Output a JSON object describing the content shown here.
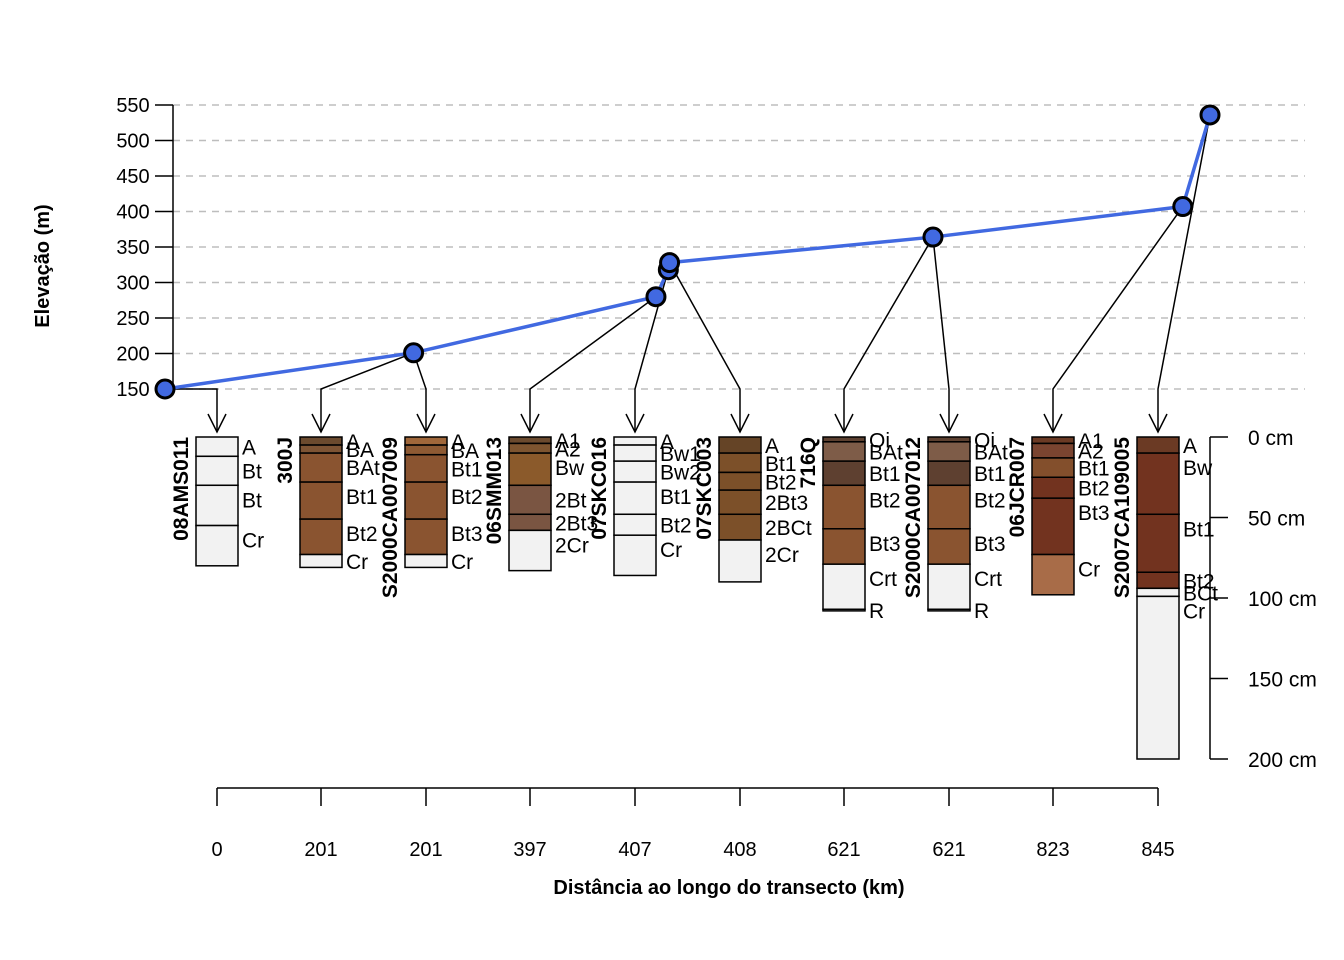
{
  "chart_data": {
    "type": "line",
    "ylabel": "Elevação (m)",
    "xlabel": "Distância ao longo do transecto (km)",
    "ylim": [
      150,
      550
    ],
    "y_ticks": [
      150,
      200,
      250,
      300,
      350,
      400,
      450,
      500,
      550
    ],
    "grid": "horizontal dashed",
    "line_color": "#4169E1",
    "point_fill": "#4169E1",
    "elevation_points": [
      {
        "x": 0,
        "y": 150
      },
      {
        "x": 201,
        "y": 201
      },
      {
        "x": 397,
        "y": 280
      },
      {
        "x": 407,
        "y": 318
      },
      {
        "x": 408,
        "y": 328
      },
      {
        "x": 621,
        "y": 364
      },
      {
        "x": 823,
        "y": 407
      },
      {
        "x": 845,
        "y": 536
      }
    ],
    "distance_labels": [
      "0",
      "201",
      "201",
      "397",
      "407",
      "408",
      "621",
      "621",
      "823",
      "845"
    ],
    "depth_axis": {
      "ticks": [
        0,
        50,
        100,
        150,
        200
      ],
      "labels": [
        "0 cm",
        "50 cm",
        "100 cm",
        "150 cm",
        "200 cm"
      ]
    },
    "profiles": [
      {
        "id": "08AMS011",
        "point": 0,
        "horizons": [
          {
            "name": "A",
            "top": 0,
            "bottom": 12,
            "color": "#F2F2F2"
          },
          {
            "name": "Bt",
            "top": 12,
            "bottom": 30,
            "color": "#F2F2F2"
          },
          {
            "name": "Bt",
            "top": 30,
            "bottom": 55,
            "color": "#F2F2F2"
          },
          {
            "name": "Cr",
            "top": 55,
            "bottom": 80,
            "color": "#F2F2F2"
          }
        ]
      },
      {
        "id": "300J",
        "point": 1,
        "horizons": [
          {
            "name": "A",
            "top": 0,
            "bottom": 5,
            "color": "#6B4A2E"
          },
          {
            "name": "BA",
            "top": 5,
            "bottom": 10,
            "color": "#7E5434"
          },
          {
            "name": "BAt",
            "top": 10,
            "bottom": 28,
            "color": "#8A5430"
          },
          {
            "name": "Bt1",
            "top": 28,
            "bottom": 51,
            "color": "#8A5430"
          },
          {
            "name": "Bt2",
            "top": 51,
            "bottom": 73,
            "color": "#8A5430"
          },
          {
            "name": "Cr",
            "top": 73,
            "bottom": 81,
            "color": "#F2F2F2"
          }
        ]
      },
      {
        "id": "S2000CA007009",
        "point": 1,
        "horizons": [
          {
            "name": "A",
            "top": 0,
            "bottom": 5,
            "color": "#A0673A"
          },
          {
            "name": "BA",
            "top": 5,
            "bottom": 11,
            "color": "#8E5A33"
          },
          {
            "name": "Bt1",
            "top": 11,
            "bottom": 28,
            "color": "#8A5430"
          },
          {
            "name": "Bt2",
            "top": 28,
            "bottom": 51,
            "color": "#8A5430"
          },
          {
            "name": "Bt3",
            "top": 51,
            "bottom": 73,
            "color": "#8A5430"
          },
          {
            "name": "Cr",
            "top": 73,
            "bottom": 81,
            "color": "#F2F2F2"
          }
        ]
      },
      {
        "id": "06SMM013",
        "point": 2,
        "horizons": [
          {
            "name": "A1",
            "top": 0,
            "bottom": 4,
            "color": "#6B4A2E"
          },
          {
            "name": "A2",
            "top": 4,
            "bottom": 10,
            "color": "#7E5530"
          },
          {
            "name": "Bw",
            "top": 10,
            "bottom": 30,
            "color": "#8B5A2B"
          },
          {
            "name": "2Bt",
            "top": 30,
            "bottom": 48,
            "color": "#7A5542"
          },
          {
            "name": "2Bt3",
            "top": 48,
            "bottom": 58,
            "color": "#7A5542"
          },
          {
            "name": "2Cr",
            "top": 58,
            "bottom": 83,
            "color": "#F2F2F2"
          }
        ]
      },
      {
        "id": "07SKC016",
        "point": 3,
        "horizons": [
          {
            "name": "A",
            "top": 0,
            "bottom": 5,
            "color": "#F2F2F2"
          },
          {
            "name": "Bw1",
            "top": 5,
            "bottom": 15,
            "color": "#F2F2F2"
          },
          {
            "name": "Bw2",
            "top": 15,
            "bottom": 28,
            "color": "#F2F2F2"
          },
          {
            "name": "Bt1",
            "top": 28,
            "bottom": 48,
            "color": "#F2F2F2"
          },
          {
            "name": "Bt2",
            "top": 48,
            "bottom": 61,
            "color": "#F2F2F2"
          },
          {
            "name": "Cr",
            "top": 61,
            "bottom": 86,
            "color": "#F2F2F2"
          }
        ]
      },
      {
        "id": "07SKC003",
        "point": 4,
        "horizons": [
          {
            "name": "A",
            "top": 0,
            "bottom": 10,
            "color": "#654426"
          },
          {
            "name": "Bt1",
            "top": 10,
            "bottom": 22,
            "color": "#7C5029"
          },
          {
            "name": "Bt2",
            "top": 22,
            "bottom": 33,
            "color": "#7C5029"
          },
          {
            "name": "2Bt3",
            "top": 33,
            "bottom": 48,
            "color": "#7C5029"
          },
          {
            "name": "2BCt",
            "top": 48,
            "bottom": 64,
            "color": "#7C5029"
          },
          {
            "name": "2Cr",
            "top": 64,
            "bottom": 90,
            "color": "#F2F2F2"
          }
        ]
      },
      {
        "id": "716Q",
        "point": 5,
        "horizons": [
          {
            "name": "Oi",
            "top": 0,
            "bottom": 3,
            "color": "#5C4030"
          },
          {
            "name": "BAt",
            "top": 3,
            "bottom": 15,
            "color": "#7E5C48"
          },
          {
            "name": "Bt1",
            "top": 15,
            "bottom": 30,
            "color": "#5E4030"
          },
          {
            "name": "Bt2",
            "top": 30,
            "bottom": 57,
            "color": "#8A5430"
          },
          {
            "name": "Bt3",
            "top": 57,
            "bottom": 79,
            "color": "#8A5430"
          },
          {
            "name": "Crt",
            "top": 79,
            "bottom": 107,
            "color": "#F2F2F2"
          },
          {
            "name": "R",
            "top": 107,
            "bottom": 108,
            "color": "#F2F2F2"
          }
        ]
      },
      {
        "id": "S2000CA007012",
        "point": 5,
        "horizons": [
          {
            "name": "Oi",
            "top": 0,
            "bottom": 3,
            "color": "#5C4030"
          },
          {
            "name": "BAt",
            "top": 3,
            "bottom": 15,
            "color": "#7E5C48"
          },
          {
            "name": "Bt1",
            "top": 15,
            "bottom": 30,
            "color": "#5E4030"
          },
          {
            "name": "Bt2",
            "top": 30,
            "bottom": 57,
            "color": "#8A5430"
          },
          {
            "name": "Bt3",
            "top": 57,
            "bottom": 79,
            "color": "#8A5430"
          },
          {
            "name": "Crt",
            "top": 79,
            "bottom": 107,
            "color": "#F2F2F2"
          },
          {
            "name": "R",
            "top": 107,
            "bottom": 108,
            "color": "#F2F2F2"
          }
        ]
      },
      {
        "id": "06JCR007",
        "point": 6,
        "horizons": [
          {
            "name": "A1",
            "top": 0,
            "bottom": 4,
            "color": "#6B3A24"
          },
          {
            "name": "A2",
            "top": 4,
            "bottom": 13,
            "color": "#7A4430"
          },
          {
            "name": "Bt1",
            "top": 13,
            "bottom": 25,
            "color": "#834F2C"
          },
          {
            "name": "Bt2",
            "top": 25,
            "bottom": 38,
            "color": "#72331F"
          },
          {
            "name": "Bt3",
            "top": 38,
            "bottom": 73,
            "color": "#72331F"
          },
          {
            "name": "Cr",
            "top": 73,
            "bottom": 98,
            "color": "#A86C48"
          }
        ]
      },
      {
        "id": "S2007CA109005",
        "point": 7,
        "horizons": [
          {
            "name": "A",
            "top": 0,
            "bottom": 10,
            "color": "#6B3A24"
          },
          {
            "name": "Bw",
            "top": 10,
            "bottom": 48,
            "color": "#72331F"
          },
          {
            "name": "Bt1",
            "top": 48,
            "bottom": 84,
            "color": "#72331F"
          },
          {
            "name": "Bt2",
            "top": 84,
            "bottom": 94,
            "color": "#72331F"
          },
          {
            "name": "BCt",
            "top": 94,
            "bottom": 99,
            "color": "#F2F2F2"
          },
          {
            "name": "Cr",
            "top": 99,
            "bottom": 200,
            "color": "#F2F2F2"
          }
        ]
      }
    ]
  }
}
